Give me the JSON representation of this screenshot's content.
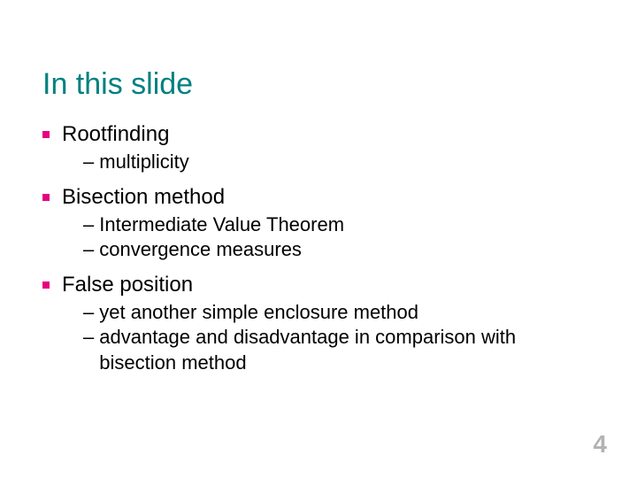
{
  "colors": {
    "title": "#008080",
    "bullet_square": "#e6007e",
    "body_text": "#000000",
    "page_number": "#b3b3b3",
    "background": "#ffffff"
  },
  "title": "In this slide",
  "items": [
    {
      "label": "Rootfinding",
      "sub": [
        "multiplicity"
      ]
    },
    {
      "label": "Bisection method",
      "sub": [
        "Intermediate Value Theorem",
        "convergence measures"
      ]
    },
    {
      "label": "False position",
      "sub": [
        "yet another simple enclosure method",
        "advantage and disadvantage in comparison with bisection method"
      ]
    }
  ],
  "page_number": "4"
}
